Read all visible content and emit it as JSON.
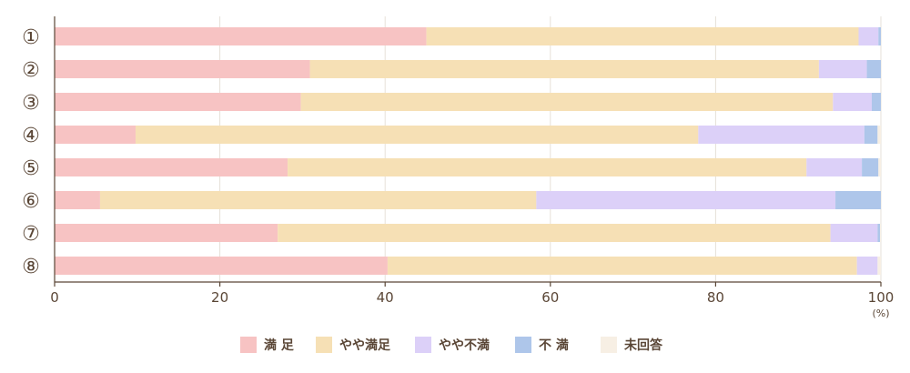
{
  "chart_data": {
    "type": "bar",
    "orientation": "horizontal",
    "stacked": true,
    "categories": [
      "①",
      "②",
      "③",
      "④",
      "⑤",
      "⑥",
      "⑦",
      "⑧"
    ],
    "series": [
      {
        "name": "満 足",
        "color": "#f7c3c3",
        "values": [
          45.0,
          30.9,
          29.8,
          9.8,
          28.2,
          5.5,
          27.0,
          40.3
        ]
      },
      {
        "name": "やや満足",
        "color": "#f6e0b5",
        "values": [
          52.3,
          61.6,
          64.4,
          68.1,
          62.8,
          52.8,
          66.9,
          56.8
        ]
      },
      {
        "name": "やや不満",
        "color": "#dcd0f8",
        "values": [
          2.4,
          5.8,
          4.7,
          20.1,
          6.7,
          36.2,
          5.7,
          2.5
        ]
      },
      {
        "name": "不 満",
        "color": "#aec6ea",
        "values": [
          0.3,
          1.7,
          1.1,
          1.6,
          2.0,
          5.5,
          0.3,
          0.0
        ]
      },
      {
        "name": "未回答",
        "color": "#f7efe4",
        "values": [
          0.0,
          0.0,
          0.0,
          0.4,
          0.3,
          0.0,
          0.1,
          0.4
        ]
      }
    ],
    "xlim": [
      0,
      100
    ],
    "xticks": [
      "0",
      "20",
      "40",
      "60",
      "80",
      "100"
    ],
    "xunit": "(%)",
    "grid": true,
    "legend": "bottom"
  }
}
